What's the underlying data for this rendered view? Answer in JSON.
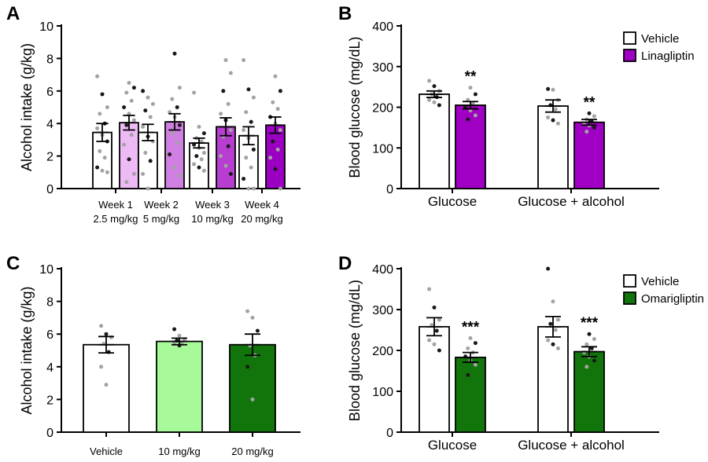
{
  "chart_data": [
    {
      "panel": "A",
      "type": "bar",
      "ylabel": "Alcohol intake (g/kg)",
      "ylim": [
        0,
        10
      ],
      "yticks": [
        0,
        2,
        4,
        6,
        8,
        10
      ],
      "groups": [
        {
          "label1": "Week 1",
          "label2": "2.5 mg/kg",
          "bars": [
            {
              "name": "vehicle",
              "value": 3.45,
              "sem": 0.55,
              "fill": "#ffffff",
              "points": [
                6.9,
                5.8,
                5.0,
                4.6,
                4.0,
                3.7,
                3.3,
                2.9,
                2.3,
                1.9,
                1.3,
                1.1,
                1.0
              ]
            },
            {
              "name": "drug",
              "value": 4.05,
              "sem": 0.45,
              "fill": "#eebaf5",
              "points": [
                6.5,
                6.2,
                5.9,
                5.4,
                5.0,
                4.6,
                4.2,
                3.9,
                3.3,
                2.7,
                1.8,
                0.9,
                0.4
              ]
            }
          ]
        },
        {
          "label1": "Week 2",
          "label2": "5 mg/kg",
          "bars": [
            {
              "name": "vehicle",
              "value": 3.45,
              "sem": 0.5,
              "fill": "#ffffff",
              "points": [
                6.0,
                5.6,
                5.2,
                4.8,
                4.4,
                3.8,
                3.2,
                2.9,
                2.2,
                1.7,
                0.9,
                0.0
              ]
            },
            {
              "name": "drug",
              "value": 4.1,
              "sem": 0.5,
              "fill": "#d080e2",
              "points": [
                8.3,
                6.2,
                5.5,
                5.0,
                4.7,
                4.4,
                3.9,
                3.4,
                2.8,
                2.1,
                1.3,
                0.8
              ]
            }
          ]
        },
        {
          "label1": "Week 3",
          "label2": "10 mg/kg",
          "bars": [
            {
              "name": "vehicle",
              "value": 2.8,
              "sem": 0.3,
              "fill": "#ffffff",
              "points": [
                5.9,
                3.8,
                3.4,
                3.1,
                2.9,
                2.7,
                2.5,
                2.2,
                2.0,
                1.8,
                1.5,
                1.3,
                1.1
              ]
            },
            {
              "name": "drug",
              "value": 3.8,
              "sem": 0.55,
              "fill": "#b73ed0",
              "points": [
                7.9,
                7.1,
                6.0,
                5.2,
                4.6,
                4.2,
                3.6,
                3.2,
                2.6,
                2.0,
                1.4,
                0.9
              ]
            }
          ]
        },
        {
          "label1": "Week 4",
          "label2": "20 mg/kg",
          "bars": [
            {
              "name": "vehicle",
              "value": 3.25,
              "sem": 0.55,
              "fill": "#ffffff",
              "points": [
                7.9,
                6.1,
                5.6,
                4.7,
                4.1,
                3.6,
                3.1,
                2.4,
                1.9,
                1.3,
                0.6,
                0.0,
                0.0
              ]
            },
            {
              "name": "drug",
              "value": 3.9,
              "sem": 0.5,
              "fill": "#9b00c2",
              "points": [
                6.9,
                6.0,
                5.3,
                4.9,
                4.4,
                4.0,
                3.6,
                2.9,
                2.4,
                1.9,
                1.2,
                0.0
              ]
            }
          ]
        }
      ]
    },
    {
      "panel": "B",
      "type": "bar",
      "ylabel": "Blood glucose (mg/dL)",
      "ylim": [
        0,
        400
      ],
      "yticks": [
        0,
        100,
        200,
        300,
        400
      ],
      "legend": [
        {
          "label": "Vehicle",
          "fill": "#ffffff"
        },
        {
          "label": "Linagliptin",
          "fill": "#a000c4"
        }
      ],
      "groups": [
        {
          "label": "Glucose",
          "bars": [
            {
              "name": "vehicle",
              "value": 232,
              "sem": 8,
              "fill": "#ffffff",
              "points": [
                265,
                252,
                240,
                232,
                225,
                218,
                212,
                205
              ]
            },
            {
              "name": "drug",
              "value": 205,
              "sem": 9,
              "fill": "#a000c4",
              "sig": "**",
              "points": [
                248,
                232,
                218,
                210,
                200,
                192,
                180,
                170
              ]
            }
          ]
        },
        {
          "label": "Glucose + alcohol",
          "bars": [
            {
              "name": "vehicle",
              "value": 203,
              "sem": 15,
              "fill": "#ffffff",
              "points": [
                245,
                243,
                218,
                205,
                195,
                175,
                168,
                160
              ]
            },
            {
              "name": "drug",
              "value": 163,
              "sem": 7,
              "fill": "#a000c4",
              "sig": "**",
              "points": [
                185,
                178,
                170,
                165,
                160,
                155,
                150,
                140
              ]
            }
          ]
        }
      ]
    },
    {
      "panel": "C",
      "type": "bar",
      "ylabel": "Alcohol intake (g/kg)",
      "ylim": [
        0,
        10
      ],
      "yticks": [
        0,
        2,
        4,
        6,
        8,
        10
      ],
      "groups": [
        {
          "label": "Vehicle",
          "bars": [
            {
              "name": "vehicle",
              "value": 5.35,
              "sem": 0.5,
              "fill": "#ffffff",
              "points": [
                6.5,
                6.0,
                5.8,
                5.4,
                4.9,
                4.0,
                2.9
              ]
            }
          ]
        },
        {
          "label": "10 mg/kg",
          "bars": [
            {
              "name": "10 mg/kg",
              "value": 5.55,
              "sem": 0.2,
              "fill": "#a7f99a",
              "points": [
                6.3,
                5.9,
                5.7,
                5.6,
                5.5,
                5.4,
                5.3
              ]
            }
          ]
        },
        {
          "label": "20 mg/kg",
          "bars": [
            {
              "name": "20 mg/kg",
              "value": 5.35,
              "sem": 0.65,
              "fill": "#12750b",
              "points": [
                7.4,
                7.0,
                6.2,
                5.3,
                4.7,
                4.0,
                2.0
              ]
            }
          ]
        }
      ]
    },
    {
      "panel": "D",
      "type": "bar",
      "ylabel": "Blood glucose (mg/dL)",
      "ylim": [
        0,
        400
      ],
      "yticks": [
        0,
        100,
        200,
        300,
        400
      ],
      "legend": [
        {
          "label": "Vehicle",
          "fill": "#ffffff"
        },
        {
          "label": "Omarigliptin",
          "fill": "#12750b"
        }
      ],
      "groups": [
        {
          "label": "Glucose",
          "bars": [
            {
              "name": "vehicle",
              "value": 258,
              "sem": 22,
              "fill": "#ffffff",
              "points": [
                350,
                305,
                275,
                262,
                248,
                225,
                215,
                200
              ]
            },
            {
              "name": "drug",
              "value": 183,
              "sem": 12,
              "fill": "#12750b",
              "sig": "***",
              "points": [
                230,
                218,
                205,
                195,
                185,
                175,
                165,
                140
              ]
            }
          ]
        },
        {
          "label": "Glucose + alcohol",
          "bars": [
            {
              "name": "vehicle",
              "value": 258,
              "sem": 25,
              "fill": "#ffffff",
              "points": [
                400,
                320,
                275,
                265,
                250,
                225,
                215,
                205
              ]
            },
            {
              "name": "drug",
              "value": 197,
              "sem": 12,
              "fill": "#12750b",
              "sig": "***",
              "points": [
                240,
                228,
                215,
                205,
                195,
                185,
                175,
                160
              ]
            }
          ]
        }
      ]
    }
  ]
}
